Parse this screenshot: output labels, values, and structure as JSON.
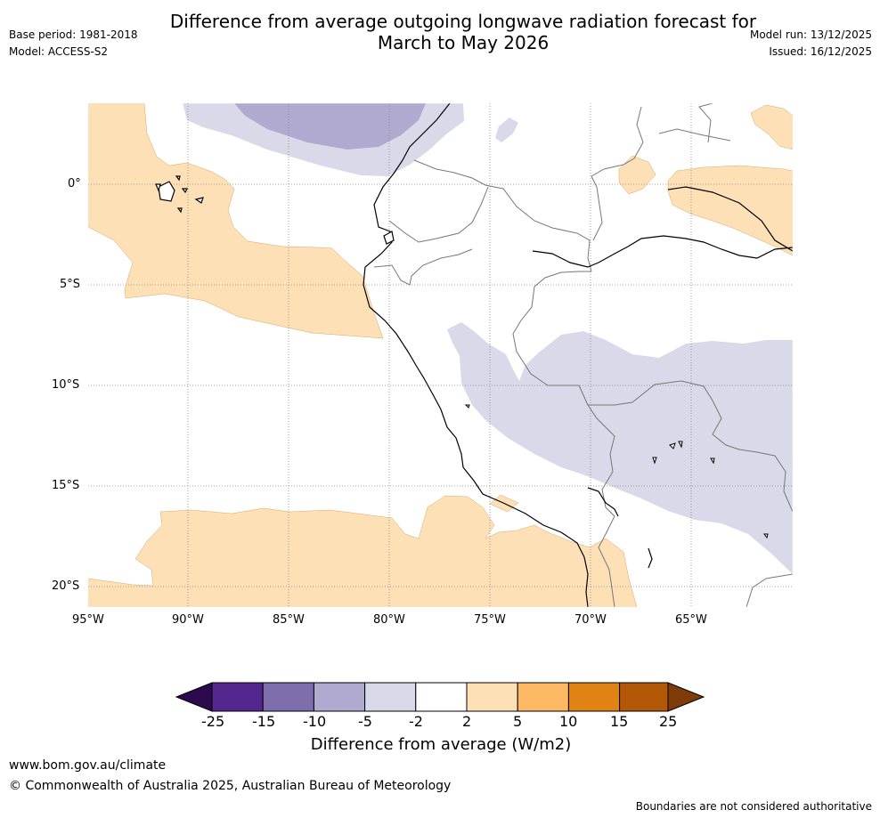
{
  "header": {
    "title_line1": "Difference from average outgoing longwave radiation forecast for",
    "title_line2": "March to May 2026",
    "base_period": "Base period: 1981-2018",
    "model": "Model: ACCESS-S2",
    "model_run": "Model run: 13/12/2025",
    "issued": "Issued: 16/12/2025"
  },
  "map": {
    "lat_labels": [
      "0°",
      "5°S",
      "10°S",
      "15°S",
      "20°S"
    ],
    "lon_labels": [
      "95°W",
      "90°W",
      "85°W",
      "80°W",
      "75°W",
      "70°W",
      "65°W"
    ]
  },
  "colorbar": {
    "ticks": [
      "-25",
      "-15",
      "-10",
      "-5",
      "-2",
      "2",
      "5",
      "10",
      "15",
      "25"
    ],
    "colors": [
      "#2d0a4e",
      "#54278f",
      "#7e6eab",
      "#b0a9d0",
      "#d9d9ea",
      "#ffffff",
      "#fee0b6",
      "#fdb863",
      "#e08214",
      "#b35806",
      "#7f3b08"
    ],
    "label": "Difference from average (W/m2)"
  },
  "footer": {
    "url": "www.bom.gov.au/climate",
    "copyright": "© Commonwealth of Australia 2025, Australian Bureau of Meteorology",
    "disclaimer": "Boundaries are not considered authoritative"
  }
}
